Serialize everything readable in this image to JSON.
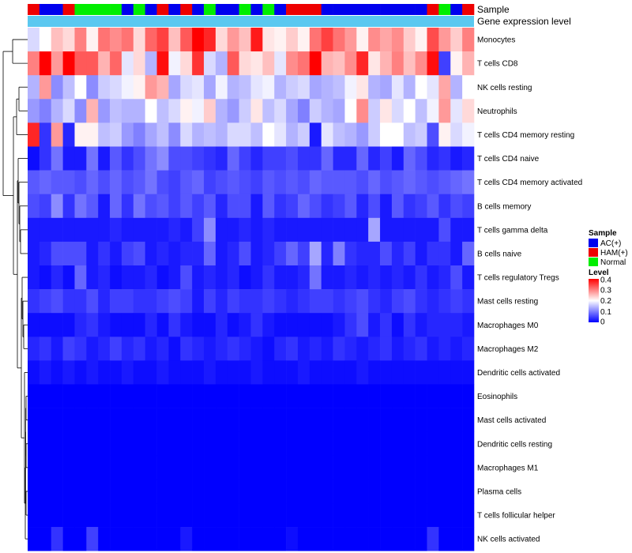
{
  "chart_data": {
    "type": "heatmap",
    "annotation_labels": [
      "Sample",
      "Gene expression level"
    ],
    "sample_legend": {
      "title": "Sample",
      "entries": [
        {
          "name": "AC(+)",
          "color": "#0000ee"
        },
        {
          "name": "HAM(+)",
          "color": "#ee0000"
        },
        {
          "name": "Normal",
          "color": "#00ee00"
        }
      ]
    },
    "level_legend": {
      "title": "Level",
      "ticks": [
        0.4,
        0.3,
        0.2,
        0.1,
        0
      ],
      "tick_labels": [
        "0.4",
        "0.3",
        "0.2",
        "0.1",
        "0"
      ],
      "range": [
        0,
        0.4
      ],
      "low_color": "#0000ff",
      "mid_color": "#ffffff",
      "high_color": "#ff0000"
    },
    "gene_expression_bar_color": "#5bc8f0",
    "columns": 38,
    "sample_groups": [
      "H",
      "A",
      "A",
      "H",
      "N",
      "N",
      "N",
      "N",
      "A",
      "N",
      "A",
      "H",
      "A",
      "H",
      "A",
      "N",
      "A",
      "A",
      "N",
      "A",
      "N",
      "A",
      "H",
      "H",
      "H",
      "A",
      "A",
      "A",
      "A",
      "A",
      "A",
      "A",
      "A",
      "A",
      "H",
      "N",
      "A",
      "H"
    ],
    "rows": [
      {
        "name": "Monocytes",
        "values": [
          0.17,
          0.2,
          0.25,
          0.23,
          0.3,
          0.21,
          0.31,
          0.29,
          0.31,
          0.23,
          0.32,
          0.35,
          0.25,
          0.33,
          0.4,
          0.37,
          0.23,
          0.28,
          0.25,
          0.38,
          0.22,
          0.21,
          0.24,
          0.21,
          0.31,
          0.35,
          0.31,
          0.28,
          0.21,
          0.29,
          0.27,
          0.29,
          0.24,
          0.21,
          0.34,
          0.28,
          0.24,
          0.3
        ]
      },
      {
        "name": "T cells CD8",
        "values": [
          0.3,
          0.4,
          0.28,
          0.4,
          0.33,
          0.33,
          0.26,
          0.32,
          0.18,
          0.23,
          0.14,
          0.39,
          0.19,
          0.23,
          0.36,
          0.17,
          0.14,
          0.33,
          0.23,
          0.22,
          0.25,
          0.18,
          0.29,
          0.31,
          0.4,
          0.26,
          0.25,
          0.29,
          0.37,
          0.22,
          0.26,
          0.3,
          0.25,
          0.29,
          0.39,
          0.05,
          0.21,
          0.26
        ]
      },
      {
        "name": "NK cells resting",
        "values": [
          0.14,
          0.28,
          0.11,
          0.15,
          0.2,
          0.11,
          0.16,
          0.17,
          0.19,
          0.21,
          0.28,
          0.26,
          0.13,
          0.17,
          0.18,
          0.13,
          0.19,
          0.14,
          0.15,
          0.18,
          0.19,
          0.14,
          0.16,
          0.17,
          0.13,
          0.14,
          0.15,
          0.19,
          0.22,
          0.14,
          0.13,
          0.18,
          0.14,
          0.2,
          0.18,
          0.27,
          0.14,
          0.2
        ]
      },
      {
        "name": "Neutrophils",
        "values": [
          0.12,
          0.1,
          0.14,
          0.17,
          0.11,
          0.26,
          0.12,
          0.15,
          0.14,
          0.14,
          0.2,
          0.15,
          0.17,
          0.21,
          0.19,
          0.24,
          0.14,
          0.12,
          0.16,
          0.22,
          0.15,
          0.17,
          0.13,
          0.1,
          0.16,
          0.14,
          0.13,
          0.2,
          0.29,
          0.16,
          0.22,
          0.17,
          0.2,
          0.15,
          0.19,
          0.28,
          0.18,
          0.23
        ]
      },
      {
        "name": "T cells CD4 memory resting",
        "values": [
          0.37,
          0.04,
          0.28,
          0.03,
          0.21,
          0.21,
          0.15,
          0.16,
          0.12,
          0.1,
          0.13,
          0.15,
          0.11,
          0.17,
          0.14,
          0.15,
          0.14,
          0.17,
          0.17,
          0.15,
          0.2,
          0.18,
          0.14,
          0.16,
          0.02,
          0.18,
          0.15,
          0.14,
          0.12,
          0.16,
          0.2,
          0.2,
          0.15,
          0.16,
          0.06,
          0.21,
          0.17,
          0.19
        ]
      },
      {
        "name": "T cells CD4 naive",
        "values": [
          0.01,
          0.04,
          0.09,
          0.02,
          0.02,
          0.09,
          0.02,
          0.07,
          0.04,
          0.06,
          0.09,
          0.11,
          0.06,
          0.06,
          0.05,
          0.04,
          0.03,
          0.08,
          0.05,
          0.03,
          0.05,
          0.05,
          0.06,
          0.04,
          0.04,
          0.08,
          0.03,
          0.03,
          0.08,
          0.03,
          0.05,
          0.02,
          0.08,
          0.06,
          0.03,
          0.04,
          0.02,
          0.03
        ]
      },
      {
        "name": "T cells CD4 memory activated",
        "values": [
          0.07,
          0.08,
          0.07,
          0.07,
          0.06,
          0.08,
          0.06,
          0.08,
          0.06,
          0.07,
          0.09,
          0.06,
          0.05,
          0.07,
          0.08,
          0.05,
          0.06,
          0.07,
          0.06,
          0.05,
          0.07,
          0.06,
          0.07,
          0.06,
          0.08,
          0.07,
          0.07,
          0.07,
          0.06,
          0.08,
          0.06,
          0.07,
          0.08,
          0.07,
          0.06,
          0.07,
          0.08,
          0.09
        ]
      },
      {
        "name": "B cells memory",
        "values": [
          0.06,
          0.05,
          0.11,
          0.04,
          0.09,
          0.07,
          0.02,
          0.08,
          0.04,
          0.09,
          0.06,
          0.07,
          0.05,
          0.07,
          0.05,
          0.07,
          0.03,
          0.06,
          0.06,
          0.02,
          0.07,
          0.04,
          0.05,
          0.08,
          0.06,
          0.04,
          0.05,
          0.07,
          0.03,
          0.06,
          0.02,
          0.07,
          0.04,
          0.05,
          0.07,
          0.04,
          0.06,
          0.05
        ]
      },
      {
        "name": "T cells gamma delta",
        "values": [
          0.02,
          0.02,
          0.02,
          0.02,
          0.02,
          0.02,
          0.02,
          0.03,
          0.02,
          0.02,
          0.02,
          0.02,
          0.03,
          0.02,
          0.05,
          0.11,
          0.02,
          0.02,
          0.03,
          0.02,
          0.03,
          0.02,
          0.02,
          0.02,
          0.02,
          0.02,
          0.02,
          0.02,
          0.02,
          0.13,
          0.02,
          0.02,
          0.02,
          0.02,
          0.02,
          0.06,
          0.02,
          0.02
        ]
      },
      {
        "name": "B cells naive",
        "values": [
          0.02,
          0.03,
          0.06,
          0.06,
          0.06,
          0.02,
          0.04,
          0.02,
          0.05,
          0.06,
          0.02,
          0.03,
          0.02,
          0.03,
          0.03,
          0.08,
          0.02,
          0.03,
          0.06,
          0.02,
          0.03,
          0.05,
          0.08,
          0.05,
          0.13,
          0.03,
          0.1,
          0.04,
          0.03,
          0.03,
          0.06,
          0.03,
          0.05,
          0.02,
          0.04,
          0.04,
          0.02,
          0.08
        ]
      },
      {
        "name": "T cells regulatory  Tregs",
        "values": [
          0.02,
          0.01,
          0.03,
          0.01,
          0.08,
          0.02,
          0.03,
          0.01,
          0.02,
          0.02,
          0.03,
          0.01,
          0.02,
          0.06,
          0.02,
          0.03,
          0.02,
          0.03,
          0.01,
          0.02,
          0.04,
          0.02,
          0.02,
          0.03,
          0.09,
          0.02,
          0.02,
          0.03,
          0.02,
          0.03,
          0.02,
          0.03,
          0.02,
          0.04,
          0.02,
          0.03,
          0.06,
          0.02
        ]
      },
      {
        "name": "Mast cells resting",
        "values": [
          0.04,
          0.05,
          0.06,
          0.04,
          0.04,
          0.06,
          0.03,
          0.05,
          0.05,
          0.04,
          0.04,
          0.05,
          0.06,
          0.05,
          0.02,
          0.05,
          0.03,
          0.05,
          0.04,
          0.04,
          0.05,
          0.04,
          0.03,
          0.04,
          0.05,
          0.05,
          0.04,
          0.05,
          0.06,
          0.04,
          0.03,
          0.05,
          0.06,
          0.04,
          0.03,
          0.04,
          0.05,
          0.04
        ]
      },
      {
        "name": "Macrophages M0",
        "values": [
          0.01,
          0.01,
          0.01,
          0.01,
          0.03,
          0.04,
          0.02,
          0.01,
          0.01,
          0.01,
          0.03,
          0.01,
          0.04,
          0.02,
          0.01,
          0.01,
          0.03,
          0.01,
          0.02,
          0.04,
          0.02,
          0.01,
          0.01,
          0.01,
          0.01,
          0.01,
          0.02,
          0.04,
          0.06,
          0.02,
          0.04,
          0.01,
          0.04,
          0.02,
          0.03,
          0.03,
          0.03,
          0.02
        ]
      },
      {
        "name": "Macrophages M2",
        "values": [
          0.03,
          0.04,
          0.02,
          0.05,
          0.04,
          0.02,
          0.03,
          0.05,
          0.03,
          0.04,
          0.02,
          0.03,
          0.01,
          0.04,
          0.03,
          0.02,
          0.03,
          0.04,
          0.03,
          0.02,
          0.01,
          0.03,
          0.04,
          0.02,
          0.03,
          0.02,
          0.04,
          0.03,
          0.02,
          0.03,
          0.04,
          0.02,
          0.03,
          0.04,
          0.02,
          0.03,
          0.02,
          0.03
        ]
      },
      {
        "name": "Dendritic cells activated",
        "values": [
          0.01,
          0.02,
          0.01,
          0.02,
          0.01,
          0.02,
          0.01,
          0.01,
          0.02,
          0.01,
          0.01,
          0.02,
          0.01,
          0.01,
          0.01,
          0.02,
          0.01,
          0.01,
          0.01,
          0.02,
          0.01,
          0.01,
          0.01,
          0.02,
          0.01,
          0.01,
          0.01,
          0.01,
          0.02,
          0.01,
          0.01,
          0.01,
          0.01,
          0.01,
          0.01,
          0.01,
          0.01,
          0.01
        ]
      },
      {
        "name": "Eosinophils",
        "values": [
          0,
          0,
          0,
          0,
          0,
          0,
          0,
          0,
          0,
          0,
          0,
          0,
          0,
          0,
          0,
          0,
          0,
          0,
          0,
          0,
          0,
          0,
          0,
          0,
          0,
          0,
          0,
          0,
          0,
          0,
          0,
          0,
          0,
          0,
          0,
          0,
          0,
          0
        ]
      },
      {
        "name": "Mast cells activated",
        "values": [
          0,
          0,
          0,
          0,
          0,
          0,
          0,
          0,
          0,
          0,
          0,
          0,
          0,
          0,
          0,
          0,
          0,
          0,
          0,
          0,
          0,
          0,
          0,
          0,
          0,
          0,
          0,
          0,
          0,
          0,
          0,
          0,
          0,
          0,
          0,
          0,
          0,
          0
        ]
      },
      {
        "name": "Dendritic cells resting",
        "values": [
          0,
          0,
          0,
          0,
          0,
          0,
          0,
          0,
          0,
          0,
          0,
          0,
          0,
          0,
          0,
          0,
          0,
          0,
          0,
          0,
          0,
          0,
          0,
          0,
          0,
          0,
          0,
          0,
          0,
          0,
          0,
          0,
          0,
          0,
          0,
          0,
          0,
          0
        ]
      },
      {
        "name": "Macrophages M1",
        "values": [
          0,
          0,
          0,
          0,
          0,
          0,
          0,
          0,
          0,
          0,
          0,
          0,
          0,
          0,
          0,
          0,
          0,
          0,
          0,
          0,
          0,
          0,
          0,
          0,
          0,
          0,
          0,
          0,
          0,
          0,
          0,
          0,
          0,
          0,
          0,
          0,
          0,
          0
        ]
      },
      {
        "name": "Plasma cells",
        "values": [
          0,
          0,
          0,
          0,
          0,
          0,
          0,
          0,
          0,
          0,
          0,
          0,
          0,
          0,
          0,
          0,
          0,
          0,
          0,
          0,
          0,
          0,
          0,
          0,
          0,
          0,
          0,
          0,
          0,
          0,
          0,
          0,
          0,
          0,
          0,
          0,
          0,
          0
        ]
      },
      {
        "name": "T cells follicular helper",
        "values": [
          0,
          0,
          0,
          0,
          0,
          0,
          0,
          0,
          0,
          0,
          0,
          0,
          0,
          0,
          0,
          0,
          0,
          0,
          0,
          0,
          0,
          0,
          0,
          0,
          0,
          0,
          0,
          0,
          0,
          0,
          0,
          0,
          0,
          0,
          0,
          0,
          0,
          0
        ]
      },
      {
        "name": "NK cells activated",
        "values": [
          0,
          0,
          0.04,
          0,
          0,
          0.05,
          0,
          0,
          0,
          0,
          0,
          0,
          0,
          0.02,
          0,
          0,
          0,
          0,
          0,
          0,
          0,
          0,
          0.01,
          0,
          0,
          0,
          0,
          0,
          0,
          0,
          0,
          0,
          0,
          0,
          0.04,
          0,
          0,
          0
        ]
      }
    ]
  }
}
